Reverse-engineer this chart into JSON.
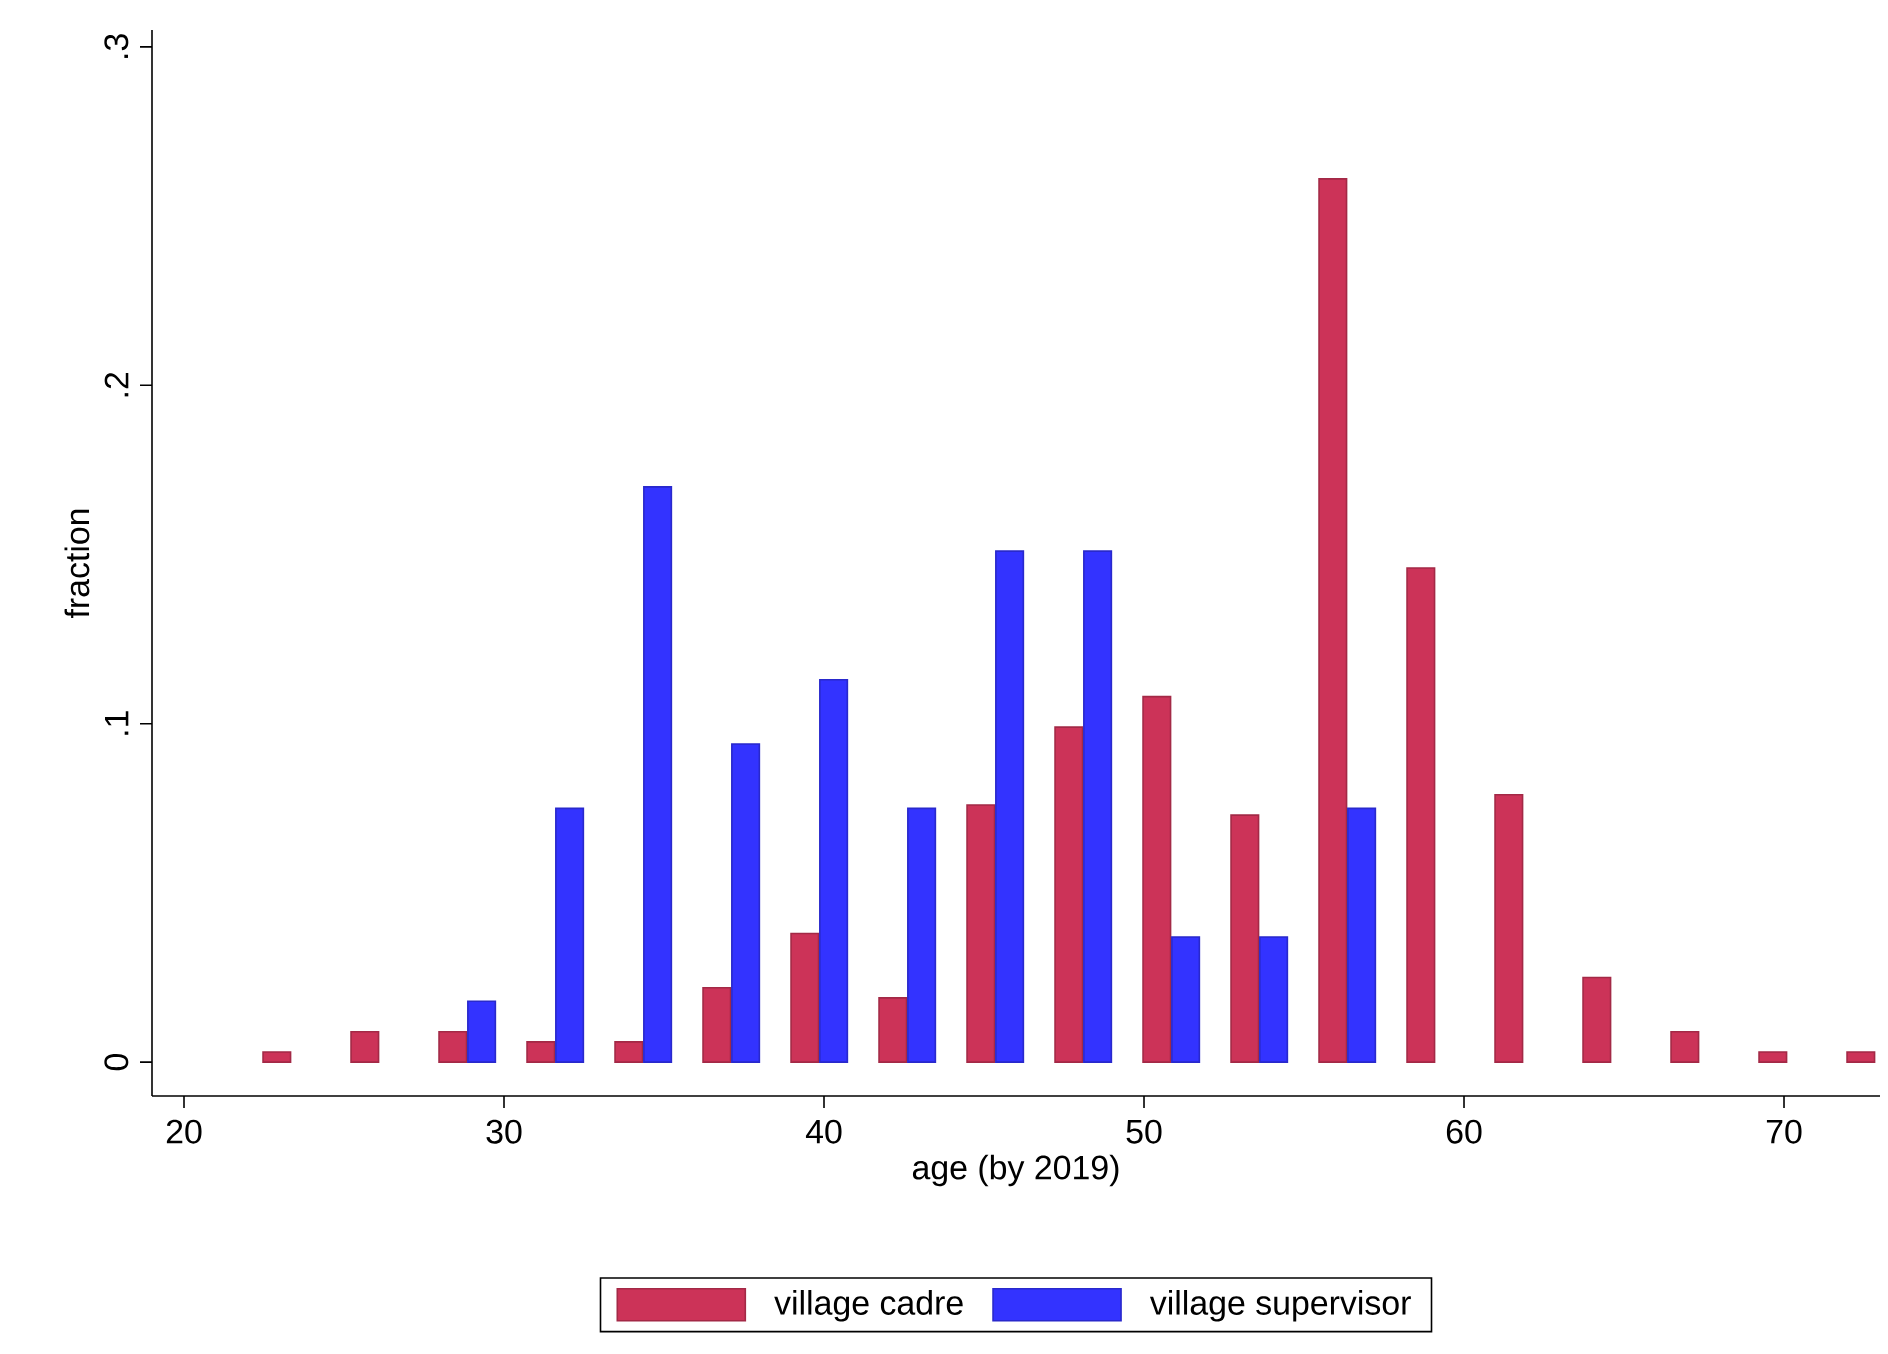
{
  "chart_data": {
    "type": "bar",
    "xlabel": "age (by 2019)",
    "ylabel": "fraction",
    "series": [
      {
        "name": "village cadre",
        "color": "#cc3358",
        "x": [
          22.9,
          25.65,
          28.4,
          31.15,
          33.9,
          36.65,
          39.4,
          42.15,
          44.9,
          47.65,
          50.4,
          53.15,
          55.9,
          58.65,
          61.4,
          64.15,
          66.9,
          69.65,
          72.4
        ],
        "values": [
          0.003,
          0.009,
          0.009,
          0.006,
          0.006,
          0.022,
          0.038,
          0.019,
          0.076,
          0.099,
          0.108,
          0.073,
          0.261,
          0.146,
          0.079,
          0.025,
          0.009,
          0.003,
          0.003
        ]
      },
      {
        "name": "village supervisor",
        "color": "#3333ff",
        "x": [
          29.3,
          32.05,
          34.8,
          37.55,
          40.3,
          43.05,
          45.8,
          48.55,
          51.3,
          54.05,
          56.8
        ],
        "values": [
          0.018,
          0.075,
          0.17,
          0.094,
          0.113,
          0.075,
          0.151,
          0.151,
          0.037,
          0.037,
          0.075
        ]
      }
    ],
    "xlim": [
      19,
      73
    ],
    "xticks": [
      20,
      30,
      40,
      50,
      60,
      70
    ],
    "ylim": [
      -0.01,
      0.305
    ],
    "yticks": [
      0,
      {
        "value": 0.1,
        "label": ".1"
      },
      {
        "value": 0.2,
        "label": ".2"
      },
      {
        "value": 0.3,
        "label": ".3"
      }
    ],
    "grid": false,
    "legend": "bottom"
  }
}
